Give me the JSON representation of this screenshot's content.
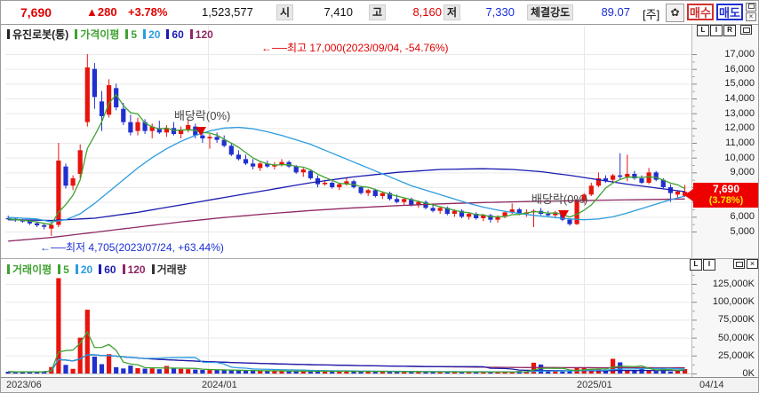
{
  "topbar": {
    "price": "7,690",
    "change_arrow": "▲",
    "change": "280",
    "change_pct": "+3.78%",
    "volume": "1,523,577",
    "open_label": "시",
    "open": "7,410",
    "high_label": "고",
    "high": "8,160",
    "low_label": "저",
    "low": "7,330",
    "strength_label": "체결강도",
    "strength": "89.07",
    "period_label": "[주]",
    "gear_glyph": "✿",
    "buy_label": "매수",
    "sell_label": "매도"
  },
  "price_chart": {
    "legend": {
      "symbol": {
        "label": "유진로봇(통)",
        "color": "#222222"
      },
      "ma_label": {
        "label": "가격이평",
        "color": "#3fa231"
      },
      "periods": [
        {
          "label": "5",
          "color": "#3fa231"
        },
        {
          "label": "20",
          "color": "#2b9ce0"
        },
        {
          "label": "60",
          "color": "#1b1bb0"
        },
        {
          "label": "120",
          "color": "#8f2863"
        }
      ]
    },
    "pane_buttons": [
      "L",
      "I",
      "R"
    ],
    "annotations": {
      "high": "←──최고 17,000(2023/09/04, -54.76%)",
      "low": "←──최저 4,705(2023/07/24, +63.44%)",
      "dividend1": "배당락(0%)",
      "dividend2": "배당락(0%)"
    },
    "current_badge": {
      "price": "7,690",
      "pct": "(3.78%)"
    }
  },
  "volume_chart": {
    "legend": {
      "ma_label": {
        "label": "거래이평",
        "color": "#3fa231"
      },
      "periods": [
        {
          "label": "5",
          "color": "#3fa231"
        },
        {
          "label": "20",
          "color": "#2b9ce0"
        },
        {
          "label": "60",
          "color": "#1b1bb0"
        },
        {
          "label": "120",
          "color": "#8f2863"
        }
      ],
      "volume_label": {
        "label": "거래량",
        "color": "#333333"
      }
    },
    "pane_buttons": [
      "L",
      "I"
    ]
  },
  "colors": {
    "up": "#e8140c",
    "down": "#2030cf",
    "ma5": "#3fa231",
    "ma20": "#2b9ce0",
    "ma60": "#1b1bb0",
    "ma120": "#8f2863",
    "grid": "#e9e9e9",
    "badge": "#ee0000"
  },
  "chart_data": {
    "type": "candlestick",
    "period": "weekly",
    "title": "유진로봇(통) weekly candles with volume",
    "x_axis_labels": [
      "2023/06",
      "2024/01",
      "2025/01",
      "04/14"
    ],
    "price_axis_ticks": [
      5000,
      6000,
      7000,
      8000,
      9000,
      10000,
      11000,
      12000,
      13000,
      14000,
      15000,
      16000,
      17000
    ],
    "volume_axis_ticks": [
      0,
      25000,
      50000,
      75000,
      100000,
      125000
    ],
    "volume_unit": "K",
    "high_point": {
      "price": 17000,
      "date": "2023/09/04",
      "pct_from_current": "-54.76%"
    },
    "low_point": {
      "price": 4705,
      "date": "2023/07/24",
      "pct_from_current": "+63.44%"
    },
    "current": {
      "close": 7690,
      "change": 280,
      "change_pct": 3.78,
      "open": 7410,
      "high": 8160,
      "low": 7330
    },
    "candles": [
      [
        5900,
        6080,
        5780,
        5860
      ],
      [
        5860,
        5950,
        5650,
        5750
      ],
      [
        5750,
        5850,
        5600,
        5680
      ],
      [
        5700,
        5780,
        5450,
        5550
      ],
      [
        5560,
        5650,
        5300,
        5420
      ],
      [
        5430,
        5520,
        5150,
        5320
      ],
      [
        5200,
        5600,
        4705,
        5450
      ],
      [
        5450,
        11000,
        5300,
        9800
      ],
      [
        9400,
        9600,
        7900,
        8100
      ],
      [
        8100,
        8800,
        7800,
        8600
      ],
      [
        8900,
        10900,
        8600,
        10500
      ],
      [
        12400,
        17000,
        12100,
        16100
      ],
      [
        16000,
        16400,
        13300,
        14100
      ],
      [
        13800,
        14500,
        11800,
        12800
      ],
      [
        12900,
        15300,
        12700,
        14900
      ],
      [
        14700,
        15000,
        13200,
        13400
      ],
      [
        13300,
        13700,
        12200,
        12400
      ],
      [
        12400,
        12900,
        11500,
        11700
      ],
      [
        11800,
        12700,
        11500,
        12400
      ],
      [
        12400,
        12600,
        11600,
        11800
      ],
      [
        11800,
        12300,
        11300,
        12100
      ],
      [
        12000,
        12500,
        11600,
        11700
      ],
      [
        11700,
        12200,
        11400,
        12000
      ],
      [
        12000,
        12400,
        11500,
        11600
      ],
      [
        11600,
        12100,
        11300,
        11900
      ],
      [
        11900,
        12600,
        11700,
        12200
      ],
      [
        12100,
        12300,
        11300,
        11500
      ],
      [
        11500,
        11900,
        11000,
        11300
      ],
      [
        11300,
        11600,
        10600,
        11400
      ],
      [
        11400,
        11700,
        11000,
        11200
      ],
      [
        11200,
        11500,
        10700,
        10800
      ],
      [
        10800,
        11000,
        10100,
        10200
      ],
      [
        10200,
        10500,
        9800,
        9900
      ],
      [
        9900,
        10200,
        9500,
        9600
      ],
      [
        9600,
        9900,
        9200,
        9400
      ],
      [
        9300,
        9700,
        9100,
        9600
      ],
      [
        9600,
        9800,
        9300,
        9400
      ],
      [
        9400,
        9700,
        9200,
        9500
      ],
      [
        9500,
        9900,
        9400,
        9700
      ],
      [
        9700,
        9800,
        9300,
        9400
      ],
      [
        9400,
        9500,
        8900,
        9000
      ],
      [
        9000,
        9300,
        8700,
        9200
      ],
      [
        9100,
        9200,
        8500,
        8600
      ],
      [
        8600,
        8800,
        8000,
        8200
      ],
      [
        8200,
        8500,
        8100,
        8300
      ],
      [
        8300,
        8400,
        7900,
        8000
      ],
      [
        8000,
        8300,
        7800,
        8200
      ],
      [
        8200,
        8600,
        8100,
        8400
      ],
      [
        8400,
        8500,
        7900,
        8000
      ],
      [
        8000,
        8100,
        7500,
        7600
      ],
      [
        7600,
        7900,
        7400,
        7800
      ],
      [
        7800,
        7900,
        7300,
        7400
      ],
      [
        7400,
        7700,
        7200,
        7600
      ],
      [
        7600,
        7700,
        7100,
        7200
      ],
      [
        7200,
        7500,
        6900,
        7000
      ],
      [
        7000,
        7300,
        6800,
        7200
      ],
      [
        7200,
        7300,
        6700,
        6800
      ],
      [
        6800,
        7100,
        6600,
        7000
      ],
      [
        7000,
        7100,
        6500,
        6600
      ],
      [
        6600,
        6900,
        6300,
        6400
      ],
      [
        6400,
        6700,
        6200,
        6600
      ],
      [
        6600,
        6700,
        6100,
        6200
      ],
      [
        6200,
        6500,
        6000,
        6400
      ],
      [
        6400,
        6500,
        5900,
        6000
      ],
      [
        6000,
        6300,
        5800,
        6200
      ],
      [
        6200,
        6300,
        5800,
        5900
      ],
      [
        5900,
        6200,
        5700,
        6100
      ],
      [
        6100,
        6200,
        5600,
        5800
      ],
      [
        5800,
        6100,
        5600,
        6000
      ],
      [
        6000,
        6400,
        5900,
        6300
      ],
      [
        6300,
        6900,
        6200,
        6500
      ],
      [
        6500,
        6600,
        6100,
        6200
      ],
      [
        6200,
        6500,
        6000,
        6300
      ],
      [
        6300,
        6500,
        5300,
        6400
      ],
      [
        6400,
        6600,
        6100,
        6200
      ],
      [
        6200,
        6400,
        6000,
        6100
      ],
      [
        6100,
        6400,
        5900,
        6300
      ],
      [
        6200,
        6300,
        5700,
        5800
      ],
      [
        5800,
        5900,
        5400,
        5500
      ],
      [
        5500,
        7200,
        5450,
        7100
      ],
      [
        7100,
        7600,
        6900,
        7500
      ],
      [
        7500,
        8300,
        7400,
        8100
      ],
      [
        8100,
        9000,
        8000,
        8600
      ],
      [
        8600,
        8800,
        8300,
        8400
      ],
      [
        8500,
        8900,
        8300,
        8800
      ],
      [
        8800,
        10300,
        8500,
        8700
      ],
      [
        8700,
        10200,
        8400,
        8900
      ],
      [
        8900,
        9100,
        8500,
        8600
      ],
      [
        8600,
        8800,
        8200,
        8300
      ],
      [
        8300,
        9300,
        8200,
        9000
      ],
      [
        9000,
        9100,
        8400,
        8500
      ],
      [
        8500,
        8600,
        7900,
        8000
      ],
      [
        8000,
        8200,
        7000,
        7600
      ],
      [
        7500,
        7800,
        7300,
        7700
      ],
      [
        7410,
        8160,
        7330,
        7690
      ]
    ],
    "volumes": [
      2500,
      2000,
      1800,
      2200,
      2600,
      3200,
      9000,
      133000,
      12000,
      6500,
      50000,
      89000,
      23500,
      13000,
      27000,
      8700,
      7000,
      11000,
      7500,
      6800,
      7200,
      6000,
      10500,
      7000,
      6500,
      6000,
      5500,
      5000,
      4800,
      5200,
      4500,
      4200,
      4000,
      3800,
      4200,
      3600,
      3400,
      3800,
      3200,
      3000,
      3400,
      3100,
      2900,
      3300,
      3600,
      2800,
      2600,
      3000,
      3200,
      2700,
      2500,
      2800,
      2400,
      2600,
      2300,
      2500,
      2200,
      2400,
      2100,
      2300,
      2000,
      2200,
      1900,
      2100,
      2000,
      2300,
      1900,
      2100,
      1800,
      2000,
      2200,
      3500,
      2600,
      15000,
      12500,
      2800,
      3200,
      2600,
      3800,
      8500,
      8000,
      6000,
      5500,
      3500,
      20500,
      15500,
      4500,
      3800,
      8500,
      4000,
      3500,
      7500,
      2600,
      5000,
      6200
    ],
    "price_ma_points": {
      "ma20": [
        [
          0,
          5950
        ],
        [
          4,
          5850
        ],
        [
          6,
          5650
        ],
        [
          8,
          5800
        ],
        [
          10,
          6200
        ],
        [
          12,
          6900
        ],
        [
          14,
          7700
        ],
        [
          16,
          8500
        ],
        [
          18,
          9300
        ],
        [
          20,
          10000
        ],
        [
          22,
          10600
        ],
        [
          24,
          11100
        ],
        [
          26,
          11500
        ],
        [
          28,
          11800
        ],
        [
          30,
          12000
        ],
        [
          32,
          12050
        ],
        [
          34,
          11950
        ],
        [
          36,
          11750
        ],
        [
          38,
          11500
        ],
        [
          40,
          11200
        ],
        [
          42,
          10900
        ],
        [
          44,
          10500
        ],
        [
          46,
          10100
        ],
        [
          48,
          9700
        ],
        [
          50,
          9300
        ],
        [
          52,
          8900
        ],
        [
          54,
          8500
        ],
        [
          56,
          8100
        ],
        [
          58,
          7800
        ],
        [
          60,
          7500
        ],
        [
          62,
          7200
        ],
        [
          64,
          6900
        ],
        [
          66,
          6650
        ],
        [
          68,
          6450
        ],
        [
          70,
          6300
        ],
        [
          72,
          6150
        ],
        [
          74,
          6050
        ],
        [
          76,
          5950
        ],
        [
          78,
          5850
        ],
        [
          80,
          5800
        ],
        [
          82,
          5850
        ],
        [
          84,
          6000
        ],
        [
          86,
          6250
        ],
        [
          88,
          6550
        ],
        [
          90,
          6850
        ],
        [
          92,
          7150
        ],
        [
          94,
          7400
        ]
      ],
      "ma60": [
        [
          0,
          5800
        ],
        [
          6,
          5750
        ],
        [
          12,
          5900
        ],
        [
          18,
          6300
        ],
        [
          24,
          6800
        ],
        [
          30,
          7300
        ],
        [
          36,
          7800
        ],
        [
          42,
          8300
        ],
        [
          48,
          8700
        ],
        [
          54,
          9000
        ],
        [
          60,
          9200
        ],
        [
          66,
          9250
        ],
        [
          70,
          9200
        ],
        [
          74,
          9050
        ],
        [
          78,
          8800
        ],
        [
          82,
          8500
        ],
        [
          86,
          8200
        ],
        [
          90,
          7950
        ],
        [
          94,
          7700
        ]
      ],
      "ma120": [
        [
          0,
          4350
        ],
        [
          6,
          4600
        ],
        [
          12,
          4950
        ],
        [
          18,
          5300
        ],
        [
          24,
          5650
        ],
        [
          30,
          5950
        ],
        [
          36,
          6200
        ],
        [
          42,
          6420
        ],
        [
          48,
          6600
        ],
        [
          54,
          6750
        ],
        [
          60,
          6870
        ],
        [
          66,
          6960
        ],
        [
          72,
          7030
        ],
        [
          78,
          7080
        ],
        [
          84,
          7130
        ],
        [
          90,
          7170
        ],
        [
          94,
          7200
        ]
      ]
    }
  }
}
